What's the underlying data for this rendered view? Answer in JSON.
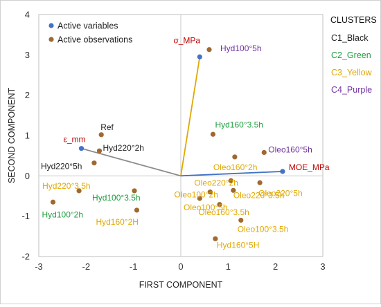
{
  "chart_data": {
    "type": "scatter",
    "xlabel": "FIRST COMPONENT",
    "ylabel": "SECOND COMPONENT",
    "xlim": [
      -3,
      3
    ],
    "ylim": [
      -2,
      4
    ],
    "x_ticks": [
      "-3",
      "-2",
      "-1",
      "0",
      "1",
      "2",
      "3"
    ],
    "y_ticks": [
      "-2",
      "-1",
      "0",
      "1",
      "2",
      "3",
      "4"
    ],
    "grid": false,
    "zero_lines": true,
    "legend": {
      "placement": "top-left",
      "items": [
        {
          "label": "Active variables",
          "color": "#4472C4"
        },
        {
          "label": "Active observations",
          "color": "#A0692F"
        }
      ]
    },
    "clusters": {
      "title": "CLUSTERS",
      "items": [
        {
          "label": "C1_Black",
          "color": "#222222"
        },
        {
          "label": "C2_Green",
          "color": "#1E9E3E"
        },
        {
          "label": "C3_Yellow",
          "color": "#E0A800"
        },
        {
          "label": "C4_Purple",
          "color": "#7030A0"
        }
      ]
    },
    "variables": [
      {
        "label": "σ_MPa",
        "x": 0.4,
        "y": 2.95,
        "label_color": "#C00000",
        "line_color": "#E0A800"
      },
      {
        "label": "ε_mm",
        "x": -2.1,
        "y": 0.68,
        "label_color": "#C00000",
        "line_color": "#8C8C8C"
      },
      {
        "label": "MOE_MPa",
        "x": 2.15,
        "y": 0.11,
        "label_color": "#C00000",
        "line_color": "#4472C4"
      }
    ],
    "observations": [
      {
        "label": "Hyd100°5h",
        "x": 0.6,
        "y": 3.13,
        "cluster": "C4_Purple"
      },
      {
        "label": "Ref",
        "x": -1.68,
        "y": 1.02,
        "cluster": "C1_Black"
      },
      {
        "label": "Hyd220°2h",
        "x": -1.72,
        "y": 0.62,
        "cluster": "C1_Black"
      },
      {
        "label": "Hyd220°5h",
        "x": -1.83,
        "y": 0.32,
        "cluster": "C1_Black"
      },
      {
        "label": "Hyd160°3.5h",
        "x": 0.68,
        "y": 1.03,
        "cluster": "C2_Green"
      },
      {
        "label": "Oleo160°5h",
        "x": 1.76,
        "y": 0.58,
        "cluster": "C4_Purple"
      },
      {
        "label": "Oleo160°2h",
        "x": 1.14,
        "y": 0.47,
        "cluster": "C3_Yellow"
      },
      {
        "label": "Oleo220°2h",
        "x": 1.06,
        "y": -0.12,
        "cluster": "C3_Yellow"
      },
      {
        "label": "Oleo220°5h",
        "x": 1.67,
        "y": -0.17,
        "cluster": "C3_Yellow"
      },
      {
        "label": "Oleo220°3.5h",
        "x": 1.11,
        "y": -0.36,
        "cluster": "C3_Yellow"
      },
      {
        "label": "Oleo100°2h",
        "x": 0.62,
        "y": -0.4,
        "cluster": "C3_Yellow"
      },
      {
        "label": "Hyd220°3.5h",
        "x": -2.15,
        "y": -0.37,
        "cluster": "C3_Yellow"
      },
      {
        "label": "Hyd100°2h",
        "x": -2.7,
        "y": -0.65,
        "cluster": "C2_Green"
      },
      {
        "label": "Hyd100°3.5h",
        "x": -0.98,
        "y": -0.37,
        "cluster": "C2_Green"
      },
      {
        "label": "Oleo100°5h",
        "x": 0.82,
        "y": -0.71,
        "cluster": "C3_Yellow"
      },
      {
        "label": "Hyd160°2H",
        "x": -0.93,
        "y": -0.85,
        "cluster": "C3_Yellow"
      },
      {
        "label": "Oleo160°3.5h",
        "x": 0.4,
        "y": -0.56,
        "cluster": "C3_Yellow"
      },
      {
        "label": "Oleo100°3.5h",
        "x": 1.27,
        "y": -1.1,
        "cluster": "C3_Yellow"
      },
      {
        "label": "Hyd160°5H",
        "x": 0.73,
        "y": -1.56,
        "cluster": "C3_Yellow"
      }
    ]
  },
  "watermark": ""
}
